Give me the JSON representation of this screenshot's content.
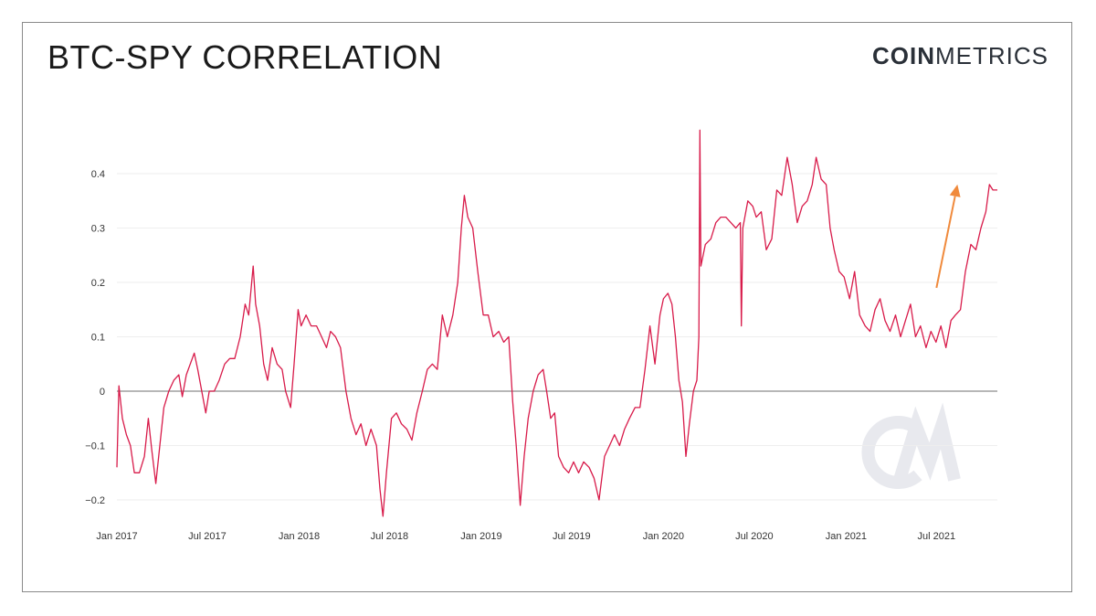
{
  "header": {
    "title": "BTC-SPY CORRELATION",
    "logo_bold": "COIN",
    "logo_light": "METRICS",
    "watermark": "CM"
  },
  "colors": {
    "line": "#d81b4a",
    "zero_line": "#8c8c8c",
    "grid": "#eeeeee",
    "arrow": "#f08a3c",
    "watermark": "#e8e9ee"
  },
  "chart_data": {
    "type": "line",
    "title": "BTC-SPY CORRELATION",
    "xlabel": "",
    "ylabel": "",
    "ylim": [
      -0.2,
      0.4
    ],
    "xlim": [
      "2017-01-01",
      "2021-10-31"
    ],
    "y_ticks": [
      {
        "value": 0.4,
        "label": "0.4"
      },
      {
        "value": 0.3,
        "label": "0.3"
      },
      {
        "value": 0.2,
        "label": "0.2"
      },
      {
        "value": 0.1,
        "label": "0.1"
      },
      {
        "value": 0,
        "label": "0"
      },
      {
        "value": -0.1,
        "label": "−0.1"
      },
      {
        "value": -0.2,
        "label": "−0.2"
      }
    ],
    "x_ticks": [
      {
        "date": "2017-01-01",
        "label": "Jan 2017"
      },
      {
        "date": "2017-07-01",
        "label": "Jul 2017"
      },
      {
        "date": "2018-01-01",
        "label": "Jan 2018"
      },
      {
        "date": "2018-07-01",
        "label": "Jul 2018"
      },
      {
        "date": "2019-01-01",
        "label": "Jan 2019"
      },
      {
        "date": "2019-07-01",
        "label": "Jul 2019"
      },
      {
        "date": "2020-01-01",
        "label": "Jan 2020"
      },
      {
        "date": "2020-07-01",
        "label": "Jul 2020"
      },
      {
        "date": "2021-01-01",
        "label": "Jan 2021"
      },
      {
        "date": "2021-07-01",
        "label": "Jul 2021"
      }
    ],
    "grid": true,
    "series": [
      {
        "points": [
          [
            "2017-01-01",
            -0.14
          ],
          [
            "2017-01-05",
            0.01
          ],
          [
            "2017-01-12",
            -0.05
          ],
          [
            "2017-01-20",
            -0.08
          ],
          [
            "2017-01-28",
            -0.1
          ],
          [
            "2017-02-05",
            -0.15
          ],
          [
            "2017-02-15",
            -0.15
          ],
          [
            "2017-02-25",
            -0.12
          ],
          [
            "2017-03-05",
            -0.05
          ],
          [
            "2017-03-12",
            -0.11
          ],
          [
            "2017-03-20",
            -0.17
          ],
          [
            "2017-03-28",
            -0.1
          ],
          [
            "2017-04-05",
            -0.03
          ],
          [
            "2017-04-15",
            0.0
          ],
          [
            "2017-04-25",
            0.02
          ],
          [
            "2017-05-05",
            0.03
          ],
          [
            "2017-05-12",
            -0.01
          ],
          [
            "2017-05-20",
            0.03
          ],
          [
            "2017-05-28",
            0.05
          ],
          [
            "2017-06-05",
            0.07
          ],
          [
            "2017-06-12",
            0.04
          ],
          [
            "2017-06-20",
            0.0
          ],
          [
            "2017-06-28",
            -0.04
          ],
          [
            "2017-07-05",
            0.0
          ],
          [
            "2017-07-15",
            0.0
          ],
          [
            "2017-07-25",
            0.02
          ],
          [
            "2017-08-05",
            0.05
          ],
          [
            "2017-08-15",
            0.06
          ],
          [
            "2017-08-25",
            0.06
          ],
          [
            "2017-09-05",
            0.1
          ],
          [
            "2017-09-15",
            0.16
          ],
          [
            "2017-09-22",
            0.14
          ],
          [
            "2017-10-01",
            0.23
          ],
          [
            "2017-10-06",
            0.16
          ],
          [
            "2017-10-14",
            0.12
          ],
          [
            "2017-10-22",
            0.05
          ],
          [
            "2017-10-30",
            0.02
          ],
          [
            "2017-11-08",
            0.08
          ],
          [
            "2017-11-18",
            0.05
          ],
          [
            "2017-11-28",
            0.04
          ],
          [
            "2017-12-05",
            0.0
          ],
          [
            "2017-12-15",
            -0.03
          ],
          [
            "2017-12-22",
            0.05
          ],
          [
            "2017-12-30",
            0.15
          ],
          [
            "2018-01-05",
            0.12
          ],
          [
            "2018-01-15",
            0.14
          ],
          [
            "2018-01-25",
            0.12
          ],
          [
            "2018-02-05",
            0.12
          ],
          [
            "2018-02-15",
            0.1
          ],
          [
            "2018-02-25",
            0.08
          ],
          [
            "2018-03-05",
            0.11
          ],
          [
            "2018-03-15",
            0.1
          ],
          [
            "2018-03-25",
            0.08
          ],
          [
            "2018-04-05",
            0.0
          ],
          [
            "2018-04-15",
            -0.05
          ],
          [
            "2018-04-25",
            -0.08
          ],
          [
            "2018-05-05",
            -0.06
          ],
          [
            "2018-05-15",
            -0.1
          ],
          [
            "2018-05-25",
            -0.07
          ],
          [
            "2018-06-05",
            -0.1
          ],
          [
            "2018-06-12",
            -0.18
          ],
          [
            "2018-06-18",
            -0.23
          ],
          [
            "2018-06-25",
            -0.15
          ],
          [
            "2018-07-05",
            -0.05
          ],
          [
            "2018-07-15",
            -0.04
          ],
          [
            "2018-07-25",
            -0.06
          ],
          [
            "2018-08-05",
            -0.07
          ],
          [
            "2018-08-15",
            -0.09
          ],
          [
            "2018-08-25",
            -0.04
          ],
          [
            "2018-09-05",
            0.0
          ],
          [
            "2018-09-15",
            0.04
          ],
          [
            "2018-09-25",
            0.05
          ],
          [
            "2018-10-05",
            0.04
          ],
          [
            "2018-10-15",
            0.14
          ],
          [
            "2018-10-25",
            0.1
          ],
          [
            "2018-11-05",
            0.14
          ],
          [
            "2018-11-15",
            0.2
          ],
          [
            "2018-11-22",
            0.3
          ],
          [
            "2018-11-28",
            0.36
          ],
          [
            "2018-12-05",
            0.32
          ],
          [
            "2018-12-15",
            0.3
          ],
          [
            "2018-12-25",
            0.22
          ],
          [
            "2019-01-05",
            0.14
          ],
          [
            "2019-01-15",
            0.14
          ],
          [
            "2019-01-25",
            0.1
          ],
          [
            "2019-02-05",
            0.11
          ],
          [
            "2019-02-15",
            0.09
          ],
          [
            "2019-02-25",
            0.1
          ],
          [
            "2019-03-05",
            -0.02
          ],
          [
            "2019-03-12",
            -0.1
          ],
          [
            "2019-03-20",
            -0.21
          ],
          [
            "2019-03-28",
            -0.12
          ],
          [
            "2019-04-05",
            -0.05
          ],
          [
            "2019-04-15",
            0.0
          ],
          [
            "2019-04-25",
            0.03
          ],
          [
            "2019-05-05",
            0.04
          ],
          [
            "2019-05-12",
            0.0
          ],
          [
            "2019-05-20",
            -0.05
          ],
          [
            "2019-05-28",
            -0.04
          ],
          [
            "2019-06-05",
            -0.12
          ],
          [
            "2019-06-15",
            -0.14
          ],
          [
            "2019-06-25",
            -0.15
          ],
          [
            "2019-07-05",
            -0.13
          ],
          [
            "2019-07-15",
            -0.15
          ],
          [
            "2019-07-25",
            -0.13
          ],
          [
            "2019-08-05",
            -0.14
          ],
          [
            "2019-08-15",
            -0.16
          ],
          [
            "2019-08-25",
            -0.2
          ],
          [
            "2019-09-05",
            -0.12
          ],
          [
            "2019-09-15",
            -0.1
          ],
          [
            "2019-09-25",
            -0.08
          ],
          [
            "2019-10-05",
            -0.1
          ],
          [
            "2019-10-15",
            -0.07
          ],
          [
            "2019-10-25",
            -0.05
          ],
          [
            "2019-11-05",
            -0.03
          ],
          [
            "2019-11-15",
            -0.03
          ],
          [
            "2019-11-25",
            0.04
          ],
          [
            "2019-12-05",
            0.12
          ],
          [
            "2019-12-15",
            0.05
          ],
          [
            "2019-12-25",
            0.14
          ],
          [
            "2020-01-01",
            0.17
          ],
          [
            "2020-01-10",
            0.18
          ],
          [
            "2020-01-18",
            0.16
          ],
          [
            "2020-01-25",
            0.1
          ],
          [
            "2020-02-01",
            0.02
          ],
          [
            "2020-02-08",
            -0.02
          ],
          [
            "2020-02-15",
            -0.12
          ],
          [
            "2020-02-22",
            -0.06
          ],
          [
            "2020-03-01",
            0.0
          ],
          [
            "2020-03-08",
            0.02
          ],
          [
            "2020-03-12",
            0.1
          ],
          [
            "2020-03-14",
            0.48
          ],
          [
            "2020-03-16",
            0.23
          ],
          [
            "2020-03-25",
            0.27
          ],
          [
            "2020-04-05",
            0.28
          ],
          [
            "2020-04-15",
            0.31
          ],
          [
            "2020-04-25",
            0.32
          ],
          [
            "2020-05-05",
            0.32
          ],
          [
            "2020-05-15",
            0.31
          ],
          [
            "2020-05-25",
            0.3
          ],
          [
            "2020-06-03",
            0.31
          ],
          [
            "2020-06-05",
            0.12
          ],
          [
            "2020-06-08",
            0.3
          ],
          [
            "2020-06-18",
            0.35
          ],
          [
            "2020-06-28",
            0.34
          ],
          [
            "2020-07-05",
            0.32
          ],
          [
            "2020-07-15",
            0.33
          ],
          [
            "2020-07-25",
            0.26
          ],
          [
            "2020-08-05",
            0.28
          ],
          [
            "2020-08-15",
            0.37
          ],
          [
            "2020-08-25",
            0.36
          ],
          [
            "2020-09-05",
            0.43
          ],
          [
            "2020-09-15",
            0.38
          ],
          [
            "2020-09-25",
            0.31
          ],
          [
            "2020-10-05",
            0.34
          ],
          [
            "2020-10-15",
            0.35
          ],
          [
            "2020-10-25",
            0.38
          ],
          [
            "2020-11-02",
            0.43
          ],
          [
            "2020-11-12",
            0.39
          ],
          [
            "2020-11-22",
            0.38
          ],
          [
            "2020-11-30",
            0.3
          ],
          [
            "2020-12-08",
            0.26
          ],
          [
            "2020-12-18",
            0.22
          ],
          [
            "2020-12-28",
            0.21
          ],
          [
            "2021-01-08",
            0.17
          ],
          [
            "2021-01-18",
            0.22
          ],
          [
            "2021-01-28",
            0.14
          ],
          [
            "2021-02-08",
            0.12
          ],
          [
            "2021-02-18",
            0.11
          ],
          [
            "2021-02-28",
            0.15
          ],
          [
            "2021-03-10",
            0.17
          ],
          [
            "2021-03-20",
            0.13
          ],
          [
            "2021-03-30",
            0.11
          ],
          [
            "2021-04-10",
            0.14
          ],
          [
            "2021-04-20",
            0.1
          ],
          [
            "2021-04-30",
            0.13
          ],
          [
            "2021-05-10",
            0.16
          ],
          [
            "2021-05-20",
            0.1
          ],
          [
            "2021-05-30",
            0.12
          ],
          [
            "2021-06-10",
            0.08
          ],
          [
            "2021-06-20",
            0.11
          ],
          [
            "2021-06-30",
            0.09
          ],
          [
            "2021-07-10",
            0.12
          ],
          [
            "2021-07-20",
            0.08
          ],
          [
            "2021-07-30",
            0.13
          ],
          [
            "2021-08-08",
            0.14
          ],
          [
            "2021-08-18",
            0.15
          ],
          [
            "2021-08-28",
            0.22
          ],
          [
            "2021-09-08",
            0.27
          ],
          [
            "2021-09-18",
            0.26
          ],
          [
            "2021-09-28",
            0.3
          ],
          [
            "2021-10-08",
            0.33
          ],
          [
            "2021-10-15",
            0.38
          ],
          [
            "2021-10-22",
            0.37
          ],
          [
            "2021-10-31",
            0.37
          ]
        ]
      }
    ],
    "annotations": [
      {
        "type": "arrow",
        "color": "#f08a3c",
        "from": [
          "2021-07-01",
          0.19
        ],
        "to": [
          "2021-08-12",
          0.38
        ]
      }
    ]
  }
}
